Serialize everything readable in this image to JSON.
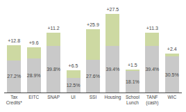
{
  "chart_data": {
    "type": "bar",
    "categories": [
      "Tax\nCredits*",
      "EITC",
      "SNAP",
      "UI",
      "SSI",
      "Housing",
      "School\nLunch",
      "TANF\n(cash)",
      "WIC"
    ],
    "series": [
      {
        "color": "#c9c9c9",
        "values": [
          27.2,
          28.9,
          39.8,
          12.5,
          27.6,
          39.4,
          18.1,
          39.4,
          30.5
        ],
        "value_labels": [
          "27.2%",
          "28.9%",
          "39.8%",
          "12.5%",
          "27.6%",
          "39.4%",
          "18.1%",
          "39.4%",
          "30.5%"
        ]
      },
      {
        "color": "#cdd9a2",
        "values": [
          12.8,
          9.6,
          11.2,
          6.5,
          25.9,
          27.5,
          1.5,
          11.3,
          2.4
        ],
        "value_labels": [
          "+12.8",
          "+9.6",
          "+11.2",
          "+6.5",
          "+25.9",
          "+27.5",
          "+1.5",
          "+11.3",
          "+2.4"
        ]
      }
    ],
    "stacked": true,
    "data_labels": true,
    "ylim": [
      0,
      75
    ],
    "tick_labels": "x",
    "grid": false
  }
}
